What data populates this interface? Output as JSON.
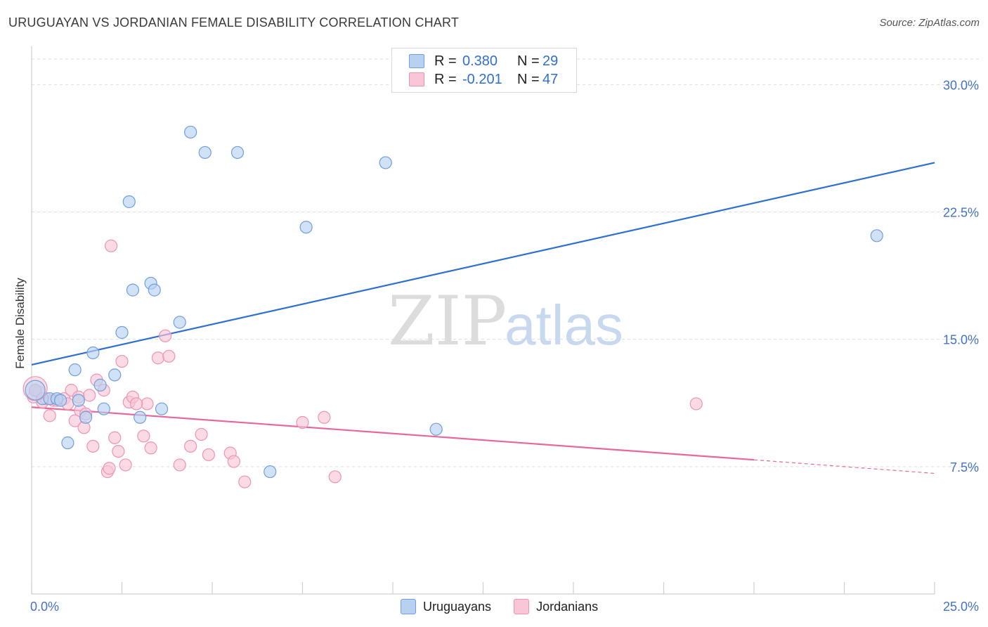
{
  "title": "URUGUAYAN VS JORDANIAN FEMALE DISABILITY CORRELATION CHART",
  "source": "Source: ZipAtlas.com",
  "watermark": {
    "zip": "ZIP",
    "atlas": "atlas"
  },
  "colors": {
    "blue": "#2f6fd0",
    "blue_fill": "#b9d1f1",
    "blue_stroke": "#6f9fdc",
    "pink": "#e8679a",
    "pink_fill": "#f8c6d7",
    "pink_stroke": "#ee93b5",
    "tick": "#4472c4",
    "grid": "#dddddd"
  },
  "legend": {
    "rows": [
      {
        "r_label": "R =",
        "r_value": "0.380",
        "n_label": "N =",
        "n_value": "29"
      },
      {
        "r_label": "R =",
        "r_value": "-0.201",
        "n_label": "N =",
        "n_value": "47"
      }
    ]
  },
  "bottom_legend": {
    "series1": "Uruguayans",
    "series2": "Jordanians"
  },
  "chart_data": {
    "type": "scatter",
    "title": "URUGUAYAN VS JORDANIAN FEMALE DISABILITY CORRELATION CHART",
    "xlabel": "",
    "ylabel": "Female Disability",
    "xlim": [
      0,
      25
    ],
    "ylim": [
      0,
      32
    ],
    "x_tick_labels": [
      "0.0%",
      "25.0%"
    ],
    "y_ticks": [
      7.5,
      15.0,
      22.5,
      30.0
    ],
    "y_tick_labels": [
      "7.5%",
      "15.0%",
      "22.5%",
      "30.0%"
    ],
    "grid": true,
    "legend_position": "top-center",
    "series": [
      {
        "name": "Uruguayans",
        "color": "#2f6fd0",
        "points": [
          [
            0.1,
            12.0
          ],
          [
            0.3,
            11.5
          ],
          [
            0.5,
            11.5
          ],
          [
            0.7,
            11.5
          ],
          [
            0.8,
            11.4
          ],
          [
            1.0,
            8.9
          ],
          [
            1.2,
            13.2
          ],
          [
            1.3,
            11.4
          ],
          [
            1.5,
            10.4
          ],
          [
            1.7,
            14.2
          ],
          [
            1.9,
            12.3
          ],
          [
            2.0,
            10.9
          ],
          [
            2.3,
            12.9
          ],
          [
            2.5,
            15.4
          ],
          [
            2.7,
            23.1
          ],
          [
            2.8,
            17.9
          ],
          [
            3.0,
            10.4
          ],
          [
            3.3,
            18.3
          ],
          [
            3.4,
            17.9
          ],
          [
            3.6,
            10.9
          ],
          [
            4.1,
            16.0
          ],
          [
            4.4,
            27.2
          ],
          [
            4.8,
            26.0
          ],
          [
            5.7,
            26.0
          ],
          [
            6.6,
            7.2
          ],
          [
            7.6,
            21.6
          ],
          [
            9.8,
            25.4
          ],
          [
            11.2,
            9.7
          ],
          [
            23.4,
            21.1
          ]
        ],
        "trend": {
          "x": [
            0.0,
            25.0
          ],
          "y": [
            13.5,
            25.4
          ]
        }
      },
      {
        "name": "Jordanians",
        "color": "#e8679a",
        "points": [
          [
            0.1,
            12.0
          ],
          [
            0.3,
            11.3
          ],
          [
            0.4,
            11.5
          ],
          [
            0.5,
            10.5
          ],
          [
            0.6,
            11.4
          ],
          [
            0.7,
            11.4
          ],
          [
            0.9,
            11.5
          ],
          [
            1.0,
            11.2
          ],
          [
            1.1,
            12.0
          ],
          [
            1.2,
            10.2
          ],
          [
            1.3,
            11.6
          ],
          [
            1.35,
            10.8
          ],
          [
            1.45,
            9.8
          ],
          [
            1.6,
            11.7
          ],
          [
            1.7,
            8.7
          ],
          [
            1.8,
            12.6
          ],
          [
            2.0,
            12.0
          ],
          [
            2.1,
            7.2
          ],
          [
            2.15,
            7.4
          ],
          [
            2.2,
            20.5
          ],
          [
            2.3,
            9.2
          ],
          [
            2.4,
            8.4
          ],
          [
            2.5,
            13.7
          ],
          [
            2.6,
            7.6
          ],
          [
            2.7,
            11.3
          ],
          [
            2.8,
            11.6
          ],
          [
            3.1,
            9.3
          ],
          [
            3.2,
            11.2
          ],
          [
            3.3,
            8.6
          ],
          [
            3.5,
            13.9
          ],
          [
            3.7,
            15.2
          ],
          [
            3.8,
            14.0
          ],
          [
            4.1,
            7.6
          ],
          [
            4.4,
            8.7
          ],
          [
            4.7,
            9.4
          ],
          [
            4.9,
            8.2
          ],
          [
            5.5,
            8.3
          ],
          [
            5.6,
            7.8
          ],
          [
            5.9,
            6.6
          ],
          [
            7.5,
            10.1
          ],
          [
            8.1,
            10.4
          ],
          [
            8.4,
            6.9
          ],
          [
            18.4,
            11.2
          ],
          [
            0.05,
            11.6
          ],
          [
            0.2,
            11.9
          ],
          [
            1.5,
            10.6
          ],
          [
            2.9,
            11.2
          ]
        ],
        "trend": {
          "x": [
            0.0,
            20.0
          ],
          "y": [
            11.0,
            7.9
          ]
        },
        "trend_dashed": {
          "x": [
            20.0,
            25.0
          ],
          "y": [
            7.9,
            7.1
          ]
        }
      }
    ]
  }
}
